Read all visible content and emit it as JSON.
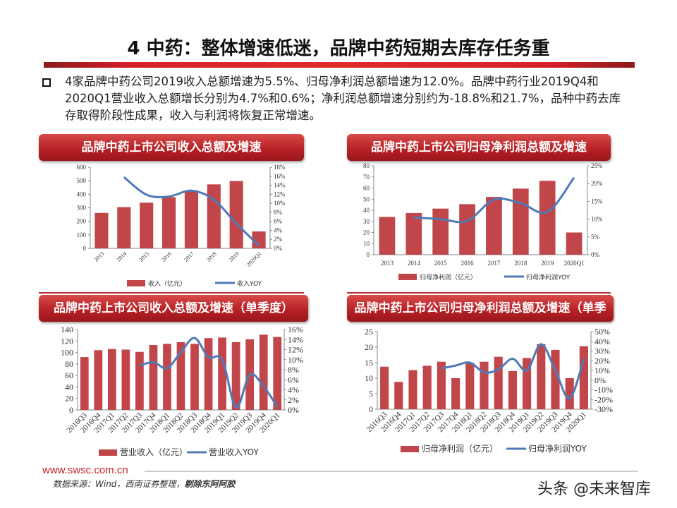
{
  "header": {
    "title": "4 中药：整体增速低迷，品牌中药短期去库存任务重"
  },
  "summary": "4家品牌中药公司2019收入总额增速为5.5%、归母净利润总额增速为12.0%。品牌中药行业2019Q4和2020Q1营业收入总额增长分别为4.7%和0.6%；净利润总额增速分别约为-18.8%和21.7%，品种中药去库存取得阶段性成果，收入与利润将恢复正常增速。",
  "colors": {
    "bar": "#c0464a",
    "line": "#4f7ab8",
    "accent": "#c0272d"
  },
  "footer": {
    "url": "www.swsc.com.cn",
    "source": "数据来源：Wind，西南证券整理，",
    "source_bold": "剔除东阿阿胶",
    "watermark": "头条 @未来智库"
  },
  "chart_data": [
    {
      "type": "bar+line",
      "title": "品牌中药上市公司收入总额及增速",
      "categories": [
        "2013",
        "2014",
        "2015",
        "2016",
        "2017",
        "2018",
        "2019",
        "2020Q1"
      ],
      "series": [
        {
          "name": "收入（亿元）",
          "type": "bar",
          "axis": "left",
          "values": [
            262,
            305,
            338,
            378,
            428,
            473,
            498,
            125
          ]
        },
        {
          "name": "收入YOY",
          "type": "line",
          "axis": "right",
          "unit": "%",
          "values": [
            null,
            15.8,
            11.9,
            11.5,
            12.8,
            10.8,
            5.5,
            0.6
          ]
        }
      ],
      "ylim_left": [
        0,
        600
      ],
      "yticks_left": [
        0,
        100,
        200,
        300,
        400,
        500,
        600
      ],
      "ylim_right": [
        0,
        18
      ],
      "yticks_right": [
        "0%",
        "2%",
        "4%",
        "6%",
        "8%",
        "10%",
        "12%",
        "14%",
        "16%",
        "18%"
      ],
      "legend": "bottom",
      "grid": false,
      "xlabels_rotated": true
    },
    {
      "type": "bar+line",
      "title": "品牌中药上市公司归母净利润总额及增速",
      "categories": [
        "2013",
        "2014",
        "2015",
        "2016",
        "2017",
        "2018",
        "2019",
        "2020Q1"
      ],
      "series": [
        {
          "name": "归母净利润（亿元）",
          "type": "bar",
          "axis": "left",
          "values": [
            34,
            37.5,
            41.5,
            45.5,
            52,
            59.5,
            66.5,
            20
          ]
        },
        {
          "name": "归母净利润YOY",
          "type": "line",
          "axis": "right",
          "unit": "%",
          "values": [
            null,
            10.5,
            10,
            9.5,
            15.5,
            14.5,
            12.0,
            21.7
          ]
        }
      ],
      "ylim_left": [
        0,
        80
      ],
      "yticks_left": [
        0,
        10,
        20,
        30,
        40,
        50,
        60,
        70,
        80
      ],
      "ylim_right": [
        0,
        25
      ],
      "yticks_right": [
        "0%",
        "5%",
        "10%",
        "15%",
        "20%",
        "25%"
      ],
      "legend": "bottom",
      "grid": false,
      "xlabels_rotated": false
    },
    {
      "type": "bar+line",
      "title": "品牌中药上市公司收入总额及增速（单季度）",
      "categories": [
        "2016Q3",
        "2016Q4",
        "2017Q1",
        "2017Q2",
        "2017Q3",
        "2017Q4",
        "2018Q1",
        "2018Q2",
        "2018Q3",
        "2018Q4",
        "2019Q1",
        "2019Q2",
        "2019Q3",
        "2019Q4",
        "2020Q1"
      ],
      "series": [
        {
          "name": "营业收入（亿元）",
          "type": "bar",
          "axis": "left",
          "values": [
            92,
            104,
            106,
            105,
            101,
            113,
            115,
            118,
            115,
            125,
            126,
            118,
            123,
            131,
            127
          ]
        },
        {
          "name": "营业收入YOY",
          "type": "line",
          "axis": "right",
          "unit": "%",
          "values": [
            null,
            null,
            null,
            null,
            8.8,
            9.5,
            8.3,
            11.5,
            14.3,
            10.5,
            10.0,
            0.5,
            7.0,
            4.7,
            0.6
          ]
        }
      ],
      "ylim_left": [
        0,
        140
      ],
      "yticks_left": [
        0,
        20,
        40,
        60,
        80,
        100,
        120,
        140
      ],
      "ylim_right": [
        0,
        16
      ],
      "yticks_right": [
        "0%",
        "2%",
        "4%",
        "6%",
        "8%",
        "10%",
        "12%",
        "14%",
        "16%"
      ],
      "legend": "bottom",
      "grid": false,
      "xlabels_rotated": true
    },
    {
      "type": "bar+line",
      "title": "品牌中药上市公司归母净利润总额及增速（单季度）",
      "categories": [
        "2016Q3",
        "2016Q4",
        "2017Q1",
        "2017Q2",
        "2017Q3",
        "2017Q4",
        "2018Q1",
        "2018Q2",
        "2018Q3",
        "2018Q4",
        "2019Q1",
        "2019Q2",
        "2019Q3",
        "2019Q4",
        "2020Q1"
      ],
      "series": [
        {
          "name": "归母净利润（亿元）",
          "type": "bar",
          "axis": "left",
          "values": [
            13.7,
            8.8,
            12.6,
            14.0,
            15.3,
            10.0,
            15.0,
            15.3,
            16.9,
            12.3,
            16.5,
            21.0,
            19.1,
            10.0,
            20.3
          ]
        },
        {
          "name": "归母净利润YOY",
          "type": "line",
          "axis": "right",
          "unit": "%",
          "values": [
            null,
            null,
            null,
            null,
            12,
            15,
            18,
            8,
            11,
            22,
            10,
            37,
            10,
            -18.8,
            21.7
          ]
        }
      ],
      "ylim_left": [
        0,
        25
      ],
      "yticks_left": [
        0,
        5,
        10,
        15,
        20,
        25
      ],
      "ylim_right": [
        -30,
        50
      ],
      "yticks_right": [
        "-30%",
        "-20%",
        "-10%",
        "0%",
        "10%",
        "20%",
        "30%",
        "40%",
        "50%"
      ],
      "legend": "bottom",
      "grid": false,
      "xlabels_rotated": true
    }
  ]
}
